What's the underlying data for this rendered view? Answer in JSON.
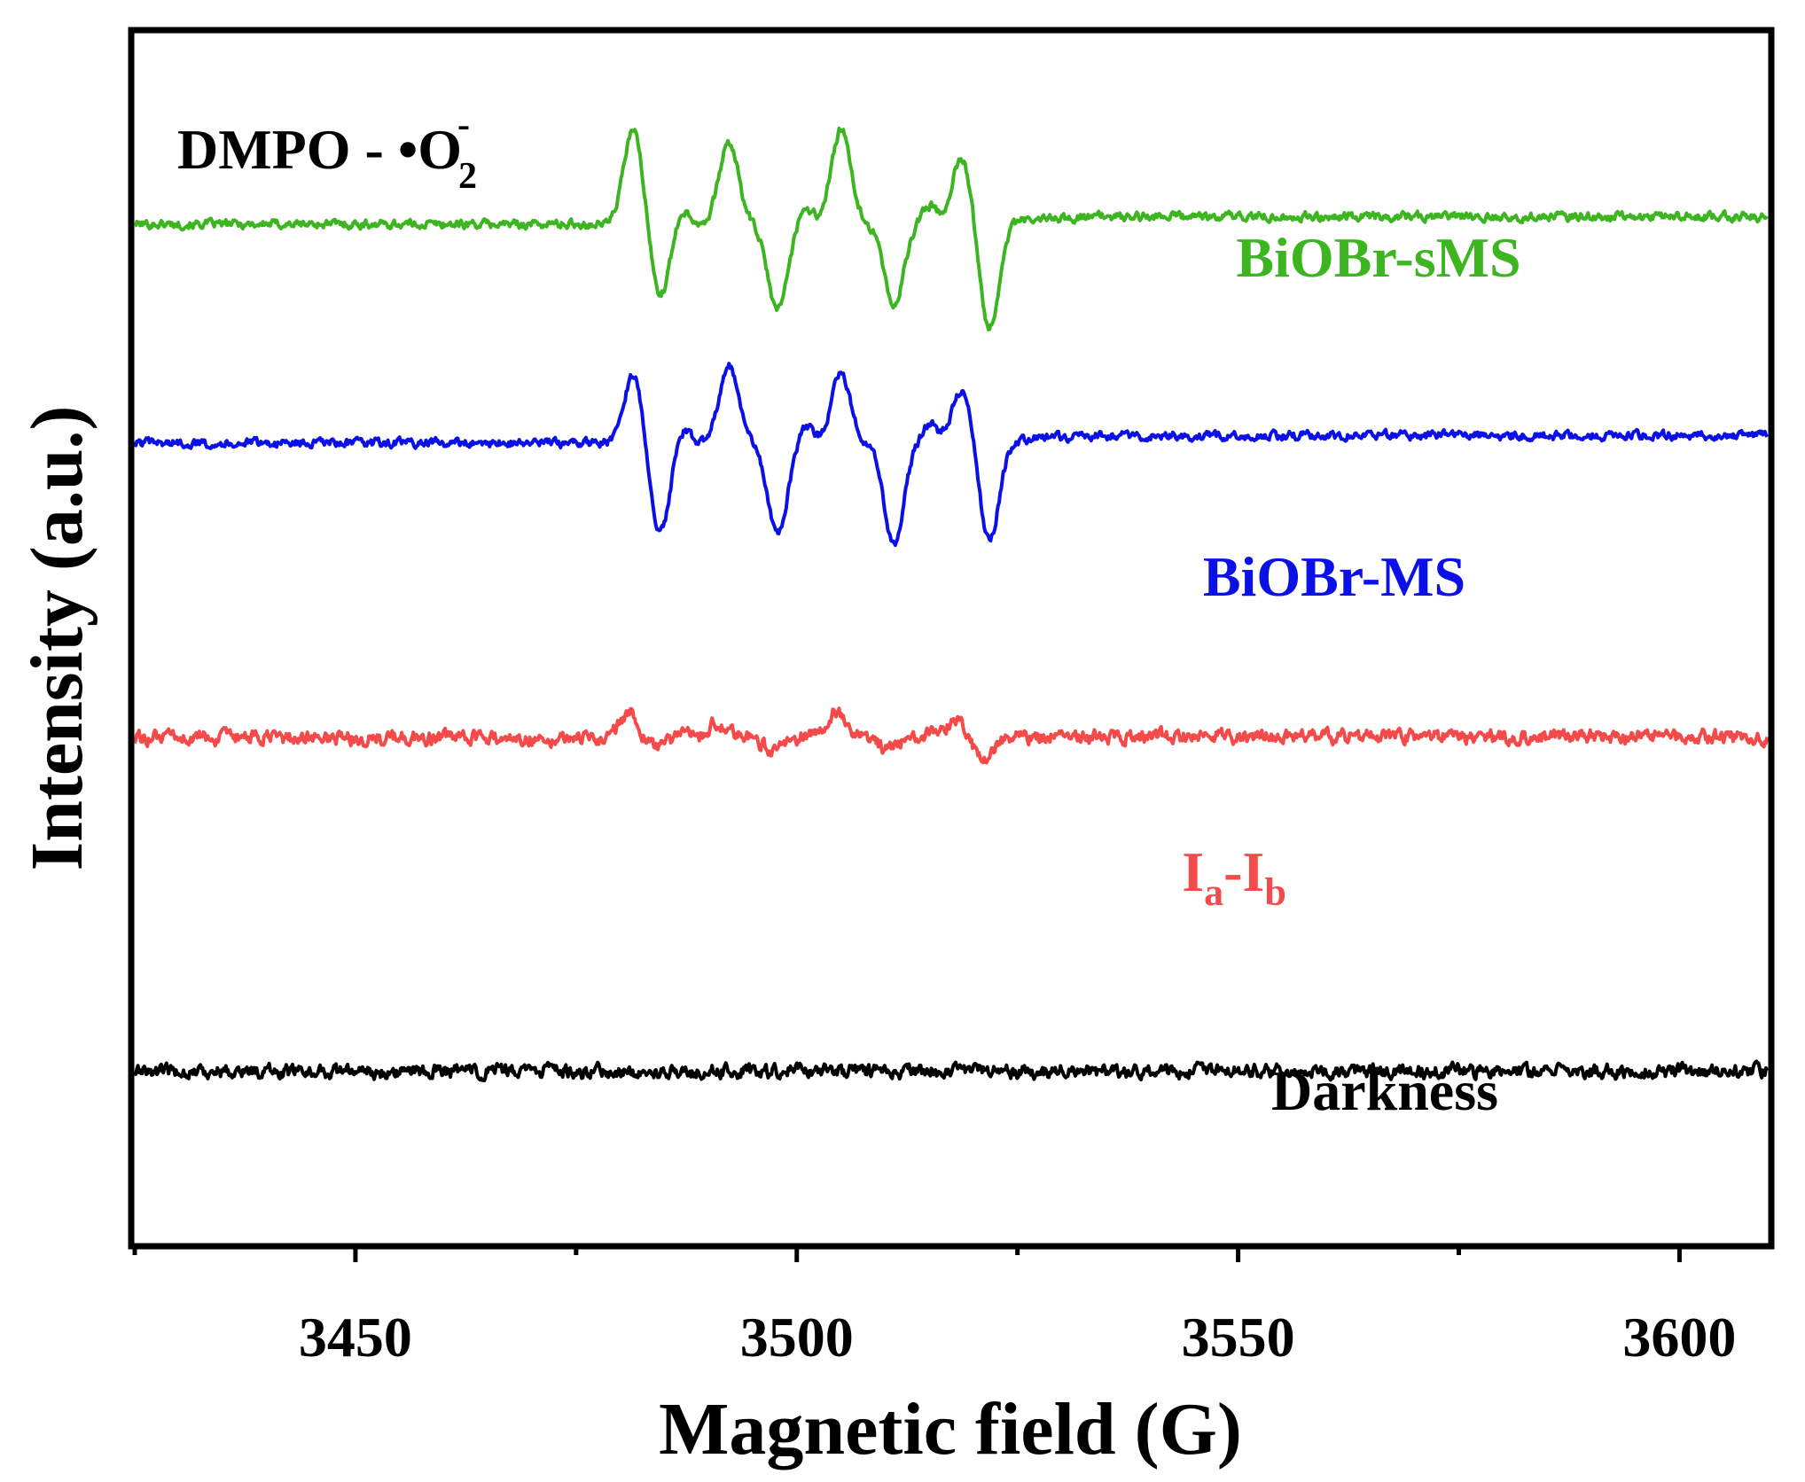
{
  "chart_data": {
    "type": "line",
    "title": "",
    "xlabel": "Magnetic field (G)",
    "ylabel": "Intensity (a.u.)",
    "xlim": [
      3425,
      3610
    ],
    "ylim": [
      -7.4,
      5.3
    ],
    "xticks": [
      3450,
      3500,
      3550,
      3600
    ],
    "yticks": [],
    "grid": false,
    "annotation": {
      "prefix": "DMPO - •O",
      "subscript": "2",
      "superscript": "-"
    },
    "signal_window": [
      3476,
      3525
    ],
    "series": [
      {
        "name": "BiOBr-sMS",
        "label_main": "BiOBr-sMS",
        "label_sub": "",
        "color": "#3cb521",
        "offset": 3.3,
        "amplitude": 1.0,
        "peak_positions": [
          3481.5,
          3492.3,
          3505.0,
          3518.7
        ],
        "trough_positions": [
          3484.5,
          3497.8,
          3511.0,
          3521.8
        ],
        "peak_heights": [
          1.0,
          0.85,
          0.98,
          0.7
        ],
        "trough_depths": [
          -0.75,
          -0.9,
          -0.85,
          -1.1
        ],
        "noise": 0.05
      },
      {
        "name": "BiOBr-MS",
        "label_main": "BiOBr-MS",
        "label_sub": "",
        "color": "#0b10e6",
        "offset": 1.0,
        "amplitude": 1.0,
        "peak_positions": [
          3481.5,
          3492.3,
          3505.0,
          3518.7
        ],
        "trough_positions": [
          3484.5,
          3497.8,
          3511.0,
          3521.8
        ],
        "peak_heights": [
          0.72,
          0.82,
          0.72,
          0.55
        ],
        "trough_depths": [
          -0.95,
          -0.95,
          -1.05,
          -1.05
        ],
        "noise": 0.05
      },
      {
        "name": "Ia-Ib",
        "label_main": "I",
        "label_sub": "a",
        "label_main2": "-I",
        "label_sub2": "b",
        "color": "#f54a4a",
        "offset": -2.1,
        "amplitude": 0.45,
        "peak_positions": [
          3481.0,
          3491.0,
          3504.5,
          3518.0
        ],
        "trough_positions": [
          3484.0,
          3497.5,
          3510.5,
          3521.0
        ],
        "peak_heights": [
          0.6,
          0.35,
          0.6,
          0.45
        ],
        "trough_depths": [
          -0.25,
          -0.3,
          -0.25,
          -0.5
        ],
        "noise": 0.08
      },
      {
        "name": "Darkness",
        "label_main": "Darkness",
        "label_sub": "",
        "color": "#000000",
        "offset": -5.6,
        "amplitude": 0.0,
        "peak_positions": [],
        "trough_positions": [],
        "peak_heights": [],
        "trough_depths": [],
        "noise": 0.08
      }
    ]
  }
}
